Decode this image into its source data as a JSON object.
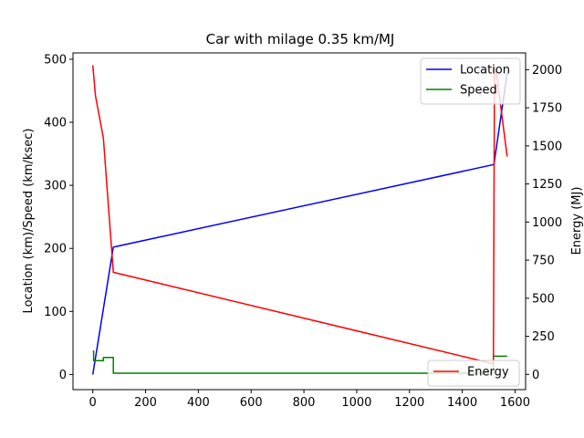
{
  "chart_data": {
    "type": "line",
    "title": "Car with milage 0.35 km/MJ",
    "xlabel": "",
    "ylabel": "Location (km)/Speed (km/ksec)",
    "y2label": "Energy (MJ)",
    "xlim": [
      -75,
      1640
    ],
    "ylim": [
      -24,
      510
    ],
    "y2lim": [
      -100,
      2110
    ],
    "xticks": [
      0,
      200,
      400,
      600,
      800,
      1000,
      1200,
      1400,
      1600
    ],
    "yticks": [
      0,
      100,
      200,
      300,
      400,
      500
    ],
    "y2ticks": [
      0,
      250,
      500,
      750,
      1000,
      1250,
      1500,
      1750,
      2000
    ],
    "grid": false,
    "legends": [
      {
        "placement": "top-right",
        "entries": [
          "Location",
          "Speed"
        ]
      },
      {
        "placement": "bottom-right",
        "entries": [
          "Energy"
        ]
      }
    ],
    "series": [
      {
        "name": "Location",
        "axis": "left",
        "color": "#0000ff",
        "points": [
          [
            0,
            0
          ],
          [
            78,
            202
          ],
          [
            1520,
            333
          ],
          [
            1570,
            478
          ]
        ]
      },
      {
        "name": "Speed",
        "axis": "left",
        "color": "#008000",
        "points": [
          [
            0,
            37
          ],
          [
            3,
            37
          ],
          [
            3,
            22
          ],
          [
            40,
            22
          ],
          [
            40,
            27
          ],
          [
            78,
            27
          ],
          [
            78,
            2
          ],
          [
            1518,
            2
          ],
          [
            1518,
            29
          ],
          [
            1570,
            29
          ]
        ]
      },
      {
        "name": "Energy",
        "axis": "right",
        "color": "#ff0000",
        "points": [
          [
            0,
            2030
          ],
          [
            10,
            1830
          ],
          [
            40,
            1550
          ],
          [
            78,
            670
          ],
          [
            1518,
            70
          ],
          [
            1522,
            2020
          ],
          [
            1530,
            1970
          ],
          [
            1570,
            1430
          ]
        ]
      }
    ]
  }
}
